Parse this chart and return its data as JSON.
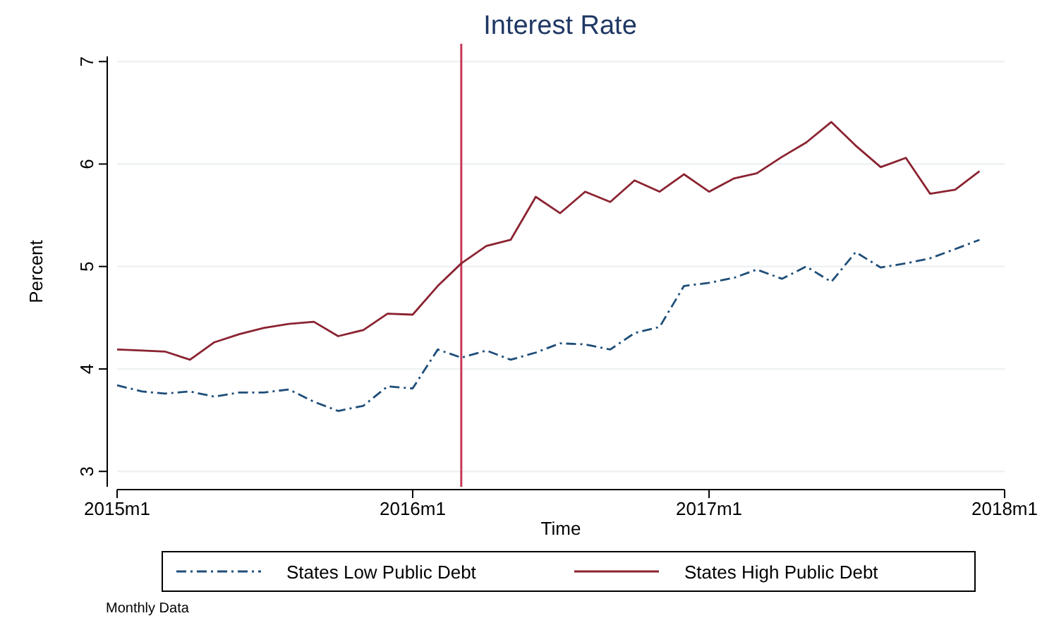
{
  "chart_data": {
    "type": "line",
    "title": "Interest Rate",
    "xlabel": "Time",
    "ylabel": "Percent",
    "x": [
      "2015-01",
      "2015-02",
      "2015-03",
      "2015-04",
      "2015-05",
      "2015-06",
      "2015-07",
      "2015-08",
      "2015-09",
      "2015-10",
      "2015-11",
      "2015-12",
      "2016-01",
      "2016-02",
      "2016-03",
      "2016-04",
      "2016-05",
      "2016-06",
      "2016-07",
      "2016-08",
      "2016-09",
      "2016-10",
      "2016-11",
      "2016-12",
      "2017-01",
      "2017-02",
      "2017-03",
      "2017-04",
      "2017-05",
      "2017-06",
      "2017-07",
      "2017-08",
      "2017-09",
      "2017-10",
      "2017-11",
      "2017-12"
    ],
    "series": [
      {
        "name": "States Low Public Debt",
        "color": "#1f4e79",
        "line_style": "dashed",
        "values": [
          3.84,
          3.78,
          3.76,
          3.78,
          3.73,
          3.77,
          3.77,
          3.8,
          3.68,
          3.59,
          3.64,
          3.83,
          3.81,
          4.19,
          4.11,
          4.18,
          4.09,
          4.16,
          4.25,
          4.24,
          4.19,
          4.35,
          4.41,
          4.81,
          4.84,
          4.89,
          4.97,
          4.88,
          5.0,
          4.85,
          5.14,
          4.99,
          5.03,
          5.08,
          5.17,
          5.26
        ]
      },
      {
        "name": "States High Public Debt",
        "color": "#8b2331",
        "line_style": "solid",
        "values": [
          4.19,
          4.18,
          4.17,
          4.09,
          4.26,
          4.34,
          4.4,
          4.44,
          4.46,
          4.32,
          4.38,
          4.54,
          4.53,
          4.81,
          5.03,
          5.2,
          5.26,
          5.68,
          5.52,
          5.73,
          5.63,
          5.84,
          5.73,
          5.9,
          5.73,
          5.86,
          5.91,
          6.07,
          6.21,
          6.41,
          6.18,
          5.97,
          6.06,
          5.71,
          5.75,
          5.93
        ]
      }
    ],
    "xlim": [
      "2015-01",
      "2018-01"
    ],
    "xticks": [
      {
        "value": "2015-01",
        "label": "2015m1"
      },
      {
        "value": "2016-01",
        "label": "2016m1"
      },
      {
        "value": "2017-01",
        "label": "2017m1"
      },
      {
        "value": "2018-01",
        "label": "2018m1"
      }
    ],
    "ylim": [
      2.85,
      7.05
    ],
    "yticks": [
      3,
      4,
      5,
      6,
      7
    ],
    "grid": "y",
    "legend": "bottom",
    "ref_lines": [
      {
        "axis": "x",
        "value": "2016-03",
        "color": "#c8385a"
      }
    ],
    "annotations": [
      "Monthly Data"
    ]
  }
}
